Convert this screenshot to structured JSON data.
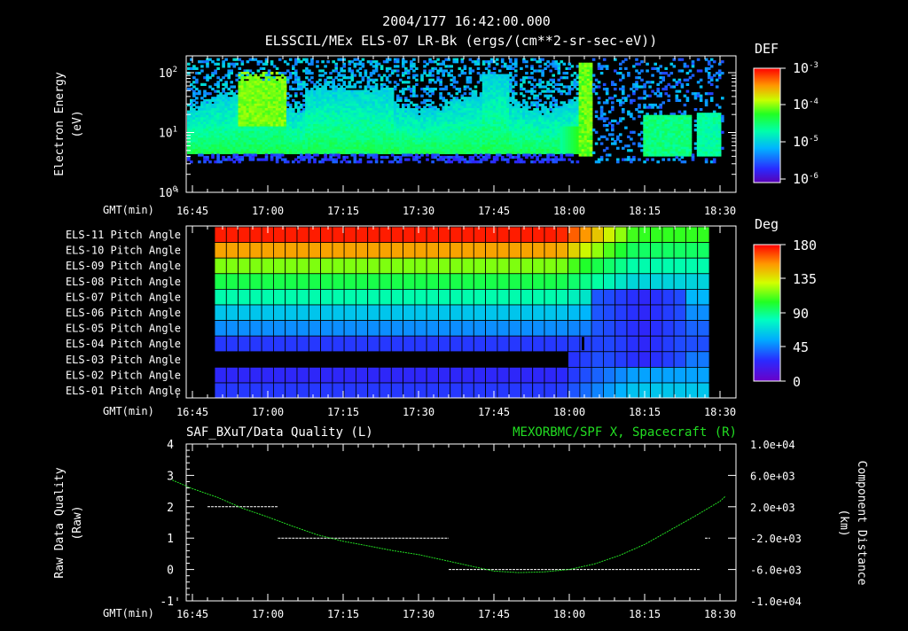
{
  "header": {
    "timestamp": "2004/177 16:42:00.000",
    "title": "ELSSCIL/MEx ELS-07 LR-Bk  (ergs/(cm**2-sr-sec-eV))"
  },
  "time_axis": {
    "label": "GMT(min)",
    "ticks": [
      "16:45",
      "17:00",
      "17:15",
      "17:30",
      "17:45",
      "18:00",
      "18:15",
      "18:30"
    ],
    "tick_minutes": [
      0,
      15,
      30,
      45,
      60,
      75,
      90,
      105
    ]
  },
  "panel1": {
    "ylabel": [
      "Electron Energy",
      "(eV)"
    ],
    "yticks": [
      "10^0",
      "10^1",
      "10^2"
    ],
    "ytick_values": [
      1,
      10,
      100
    ],
    "colorbar": {
      "title": "DEF",
      "ticks": [
        "10^-3",
        "10^-4",
        "10^-5",
        "10^-6"
      ],
      "exponents": [
        -3,
        -4,
        -5,
        -6
      ]
    }
  },
  "panel2": {
    "row_labels": [
      "ELS-11 Pitch Angle",
      "ELS-10 Pitch Angle",
      "ELS-09 Pitch Angle",
      "ELS-08 Pitch Angle",
      "ELS-07 Pitch Angle",
      "ELS-06 Pitch Angle",
      "ELS-05 Pitch Angle",
      "ELS-04 Pitch Angle",
      "ELS-03 Pitch Angle",
      "ELS-02 Pitch Angle",
      "ELS-01 Pitch Angle"
    ],
    "colorbar": {
      "title": "Deg",
      "ticks": [
        "180",
        "135",
        "90",
        "45",
        "0"
      ],
      "tick_values": [
        180,
        135,
        90,
        45,
        0
      ]
    }
  },
  "panel3": {
    "title_left": "SAF_BXuT/Data Quality (L)",
    "title_right": "MEXORBMC/SPF X, Spacecraft (R)",
    "ylabel_left": [
      "Raw Data Quality",
      "(Raw)"
    ],
    "ylabel_right": [
      "Component Distance",
      "(km)"
    ],
    "yticks_left": [
      "4",
      "3",
      "2",
      "1",
      "0",
      "-1"
    ],
    "yticks_right": [
      "1.0e+04",
      "6.0e+03",
      "2.0e+03",
      "-2.0e+03",
      "-6.0e+03",
      "-1.0e+04"
    ],
    "colors": {
      "distance_line": "#22dd22",
      "quality_line": "#ffffff"
    }
  },
  "chart_data": [
    {
      "type": "heatmap",
      "title": "ELSSCIL/MEx ELS-07 LR-Bk  (ergs/(cm**2-sr-sec-eV))",
      "xlabel": "GMT(min)",
      "ylabel": "Electron Energy (eV)",
      "y_scale": "log",
      "ylim": [
        1,
        180
      ],
      "xlim": [
        "16:41",
        "18:31"
      ],
      "colorbar_label": "DEF",
      "colorbar_range": [
        1e-06,
        0.001
      ],
      "description_values": "Broad green/cyan band (~1e-4 to 1e-5 DEF) between ~4 eV and ~30-100 eV from 16:41 to 17:58; intense bursts near 17:07 and 17:59-18:03; low flux after 18:03 except 18:12-18:26 and 18:27-18:30"
    },
    {
      "type": "heatmap",
      "title": "Pitch Angle",
      "xlabel": "GMT(min)",
      "colorbar_label": "Deg",
      "colorbar_range": [
        0,
        180
      ],
      "rows": [
        "ELS-11",
        "ELS-10",
        "ELS-09",
        "ELS-08",
        "ELS-07",
        "ELS-06",
        "ELS-05",
        "ELS-04",
        "ELS-03",
        "ELS-02",
        "ELS-01"
      ],
      "pitch_before_1800": [
        175,
        150,
        120,
        100,
        80,
        60,
        45,
        25,
        null,
        20,
        25
      ],
      "pitch_after_1815": [
        110,
        95,
        80,
        65,
        55,
        45,
        35,
        30,
        40,
        50,
        60
      ]
    },
    {
      "type": "line",
      "title_left": "SAF_BXuT/Data Quality (L)",
      "title_right": "MEXORBMC/SPF X, Spacecraft (R)",
      "xlabel": "GMT(min)",
      "ylim_left": [
        -1,
        4
      ],
      "ylim_right": [
        -10000,
        10000
      ],
      "series": [
        {
          "name": "SAF_BXuT/Data Quality (L)",
          "axis": "left",
          "segments": [
            {
              "x": [
                "16:48",
                "17:02"
              ],
              "y": 2
            },
            {
              "x": [
                "17:02",
                "17:36"
              ],
              "y": 1
            },
            {
              "x": [
                "17:36",
                "18:26"
              ],
              "y": 0
            },
            {
              "x": [
                "18:27",
                "18:28"
              ],
              "y": 1
            }
          ]
        },
        {
          "name": "MEXORBMC/SPF X, Spacecraft (R)",
          "axis": "right",
          "x": [
            "16:41",
            "16:45",
            "16:50",
            "16:55",
            "17:00",
            "17:05",
            "17:10",
            "17:15",
            "17:20",
            "17:25",
            "17:30",
            "17:35",
            "17:40",
            "17:45",
            "17:50",
            "17:55",
            "18:00",
            "18:05",
            "18:10",
            "18:15",
            "18:20",
            "18:25",
            "18:30",
            "18:31"
          ],
          "y": [
            5400,
            4300,
            3200,
            1800,
            700,
            -500,
            -1600,
            -2400,
            -3000,
            -3600,
            -4100,
            -4800,
            -5500,
            -6200,
            -6400,
            -6300,
            -6000,
            -5300,
            -4200,
            -2800,
            -1000,
            800,
            2700,
            3300
          ]
        }
      ]
    }
  ]
}
